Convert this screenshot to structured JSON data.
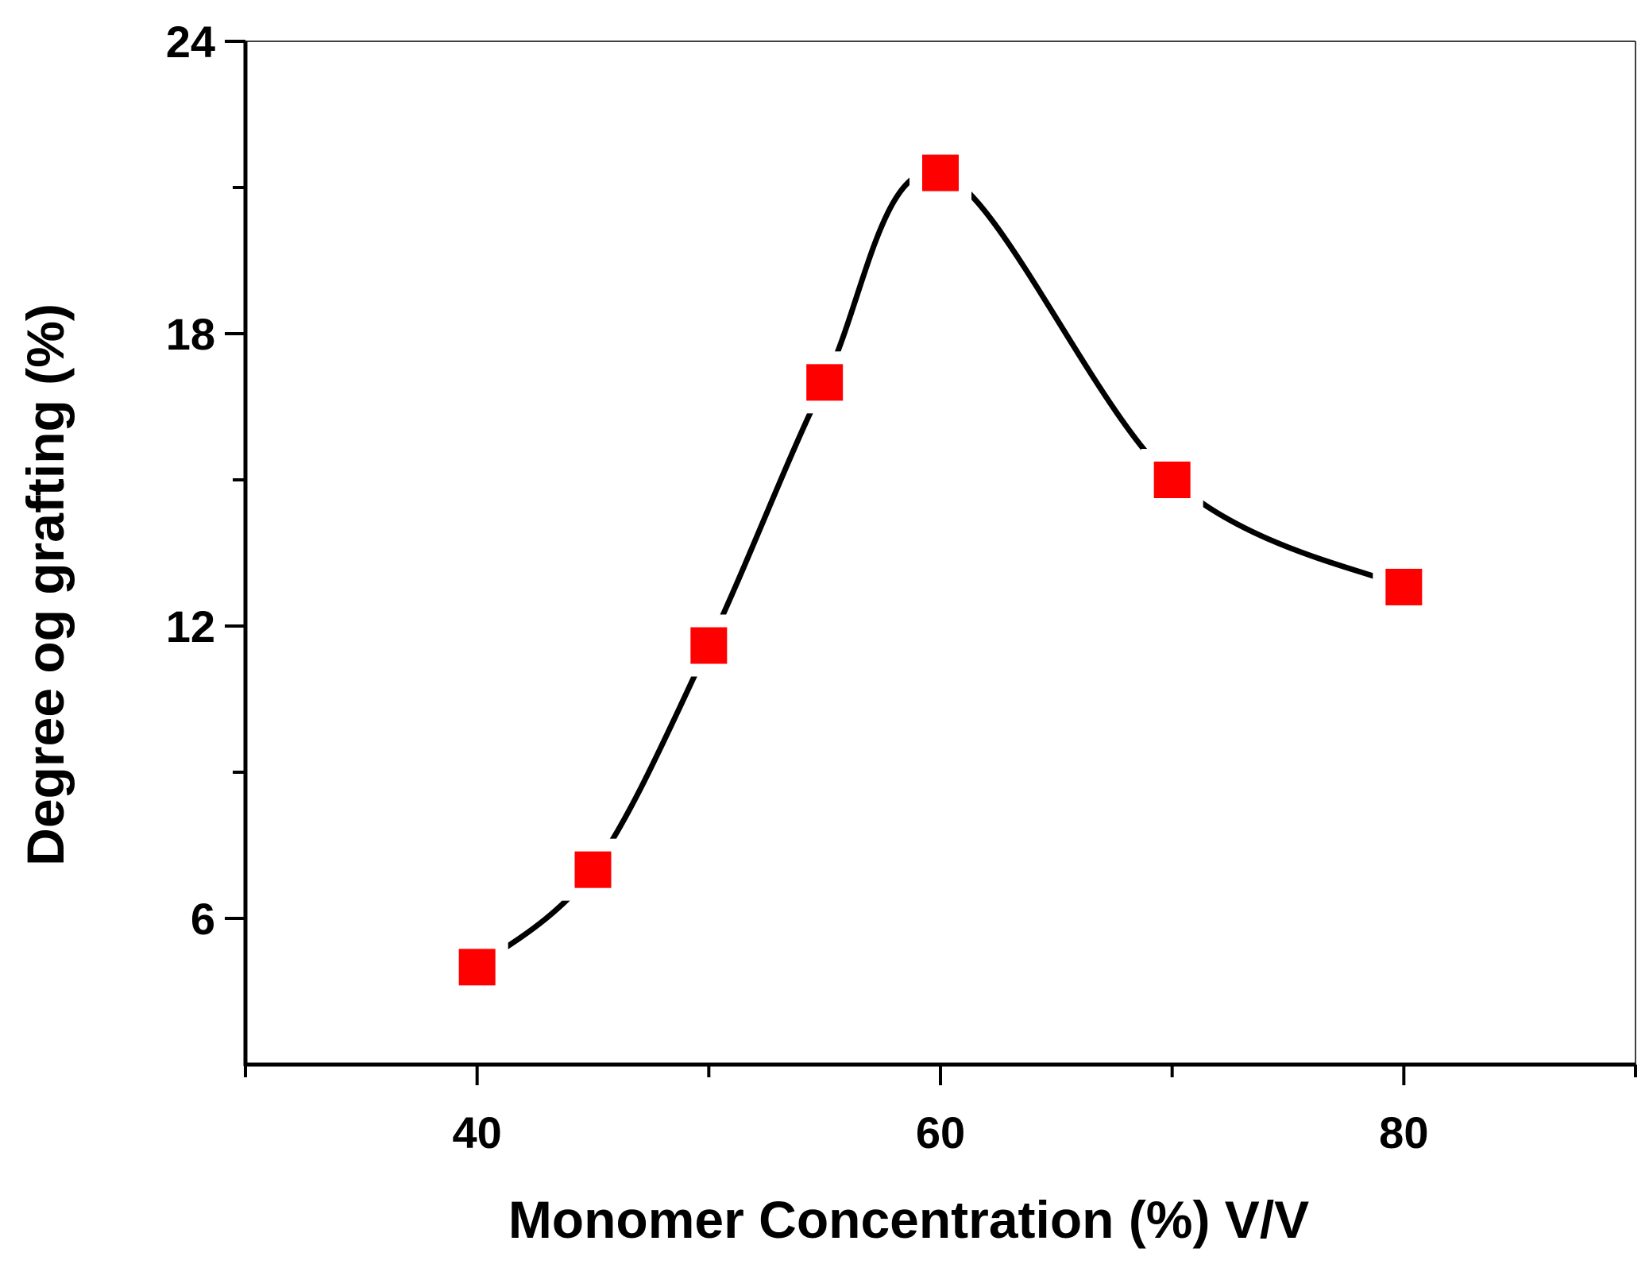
{
  "chart_data": {
    "type": "scatter",
    "title": "",
    "xlabel": "Monomer Concentration (%) V/V",
    "ylabel": "Degree og grafting (%)",
    "xlim": [
      30,
      90
    ],
    "ylim": [
      3,
      24
    ],
    "x_ticks": [
      40,
      60,
      80
    ],
    "x_tick_labels": [
      "40",
      "60",
      "80"
    ],
    "x_minor_ticks": [
      30,
      50,
      70,
      90
    ],
    "y_ticks": [
      6,
      12,
      18,
      24
    ],
    "y_tick_labels": [
      "6",
      "12",
      "18",
      "24"
    ],
    "y_minor_ticks": [
      9,
      15,
      21
    ],
    "grid": false,
    "series": [
      {
        "name": "Degree of grafting",
        "marker": "square",
        "marker_color": "#ff0000",
        "line_color": "#000000",
        "line_style": "smooth spline",
        "x": [
          40,
          45,
          50,
          55,
          60,
          70,
          80
        ],
        "values": [
          5.0,
          7.0,
          11.6,
          17.0,
          21.3,
          15.0,
          12.8
        ]
      }
    ]
  }
}
